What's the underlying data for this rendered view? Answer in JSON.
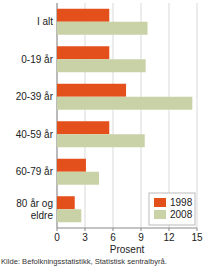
{
  "chart_data": {
    "type": "bar",
    "orientation": "horizontal",
    "categories": [
      "I alt",
      "0-19 år",
      "20-39 år",
      "40-59 år",
      "60-79 år",
      "80 år og eldre"
    ],
    "series": [
      {
        "name": "1998",
        "color": "#e4501c",
        "values": [
          5.6,
          5.6,
          7.4,
          5.6,
          3.1,
          1.9
        ]
      },
      {
        "name": "2008",
        "color": "#c9d2a6",
        "values": [
          9.7,
          9.5,
          14.5,
          9.4,
          4.5,
          2.6
        ]
      }
    ],
    "xlim": [
      0,
      15
    ],
    "xticks": [
      0,
      3,
      6,
      9,
      12,
      15
    ],
    "xlabel": "Prosent",
    "source": "Kilde: Befolkningsstatistikk, Statistisk sentralbyrå.",
    "grid": true,
    "legend": "lower right"
  }
}
